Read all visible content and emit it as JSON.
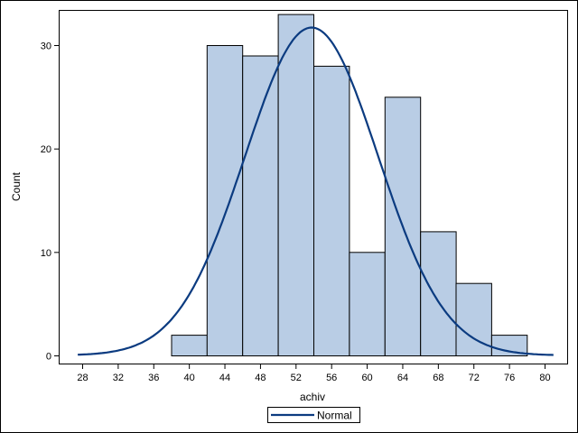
{
  "chart_data": {
    "type": "bar",
    "subtype": "histogram",
    "title": "",
    "xlabel": "achiv",
    "ylabel": "Count",
    "bin_width": 4,
    "bins": [
      {
        "start": 38,
        "end": 42,
        "count": 2
      },
      {
        "start": 42,
        "end": 46,
        "count": 30
      },
      {
        "start": 46,
        "end": 50,
        "count": 29
      },
      {
        "start": 50,
        "end": 54,
        "count": 33
      },
      {
        "start": 54,
        "end": 58,
        "count": 28
      },
      {
        "start": 58,
        "end": 62,
        "count": 10
      },
      {
        "start": 62,
        "end": 66,
        "count": 25
      },
      {
        "start": 66,
        "end": 70,
        "count": 12
      },
      {
        "start": 70,
        "end": 74,
        "count": 7
      },
      {
        "start": 74,
        "end": 78,
        "count": 2
      }
    ],
    "categories": [
      "38-42",
      "42-46",
      "46-50",
      "50-54",
      "54-58",
      "58-62",
      "62-66",
      "66-70",
      "70-74",
      "74-78"
    ],
    "values": [
      2,
      30,
      29,
      33,
      28,
      10,
      25,
      12,
      7,
      2
    ],
    "x_ticks": [
      28,
      32,
      36,
      40,
      44,
      48,
      52,
      56,
      60,
      64,
      68,
      72,
      76,
      80
    ],
    "y_ticks": [
      0,
      10,
      20,
      30
    ],
    "xlim": [
      25.3,
      82.5
    ],
    "ylim": [
      0,
      34.4
    ],
    "grid": false,
    "overlay": {
      "type": "line",
      "name": "Normal",
      "distribution": "normal",
      "mean": 53.8,
      "sd": 7.5,
      "peak_count": 31.7,
      "x_range": [
        27.5,
        81
      ]
    },
    "legend": {
      "position": "bottom",
      "entries": [
        "Normal"
      ]
    },
    "colors": {
      "bar_fill": "#B9CDE5",
      "bar_edge": "#000000",
      "curve": "#0B3B80"
    }
  }
}
